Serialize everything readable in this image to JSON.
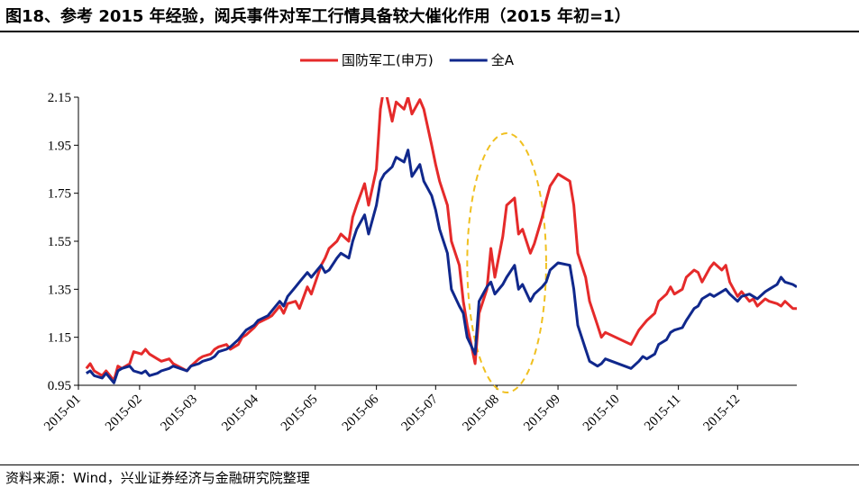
{
  "header": {
    "title": "图18、参考 2015 年经验，阅兵事件对军工行情具备较大催化作用（2015 年初=1）"
  },
  "footer": {
    "source": "资料来源：Wind，兴业证券经济与金融研究院整理"
  },
  "colors": {
    "series_red": "#e52a2a",
    "series_blue": "#10288c",
    "highlight": "#f0c020",
    "axis": "#000000"
  },
  "chart_data": {
    "type": "line",
    "title": "",
    "xlabel": "",
    "ylabel": "",
    "ylim": [
      0.95,
      2.15
    ],
    "yticks": [
      "2.15",
      "1.95",
      "1.75",
      "1.55",
      "1.35",
      "1.15",
      "0.95"
    ],
    "xticks": [
      "2015-01",
      "2015-02",
      "2015-03",
      "2015-04",
      "2015-05",
      "2015-06",
      "2015-07",
      "2015-08",
      "2015-09",
      "2015-10",
      "2015-11",
      "2015-12"
    ],
    "legend": {
      "position": "top-center"
    },
    "annotations": [
      {
        "type": "ellipse",
        "color": "#f0c020",
        "style": "dashed",
        "x_range": [
          "2015-07-17",
          "2015-08-26"
        ],
        "y_range": [
          0.92,
          2.0
        ]
      }
    ],
    "series": [
      {
        "name": "国防军工(申万)",
        "color": "#e52a2a",
        "points": [
          [
            "2015-01-05",
            1.02
          ],
          [
            "2015-01-07",
            1.04
          ],
          [
            "2015-01-09",
            1.01
          ],
          [
            "2015-01-13",
            0.99
          ],
          [
            "2015-01-15",
            1.01
          ],
          [
            "2015-01-19",
            0.97
          ],
          [
            "2015-01-21",
            1.03
          ],
          [
            "2015-01-23",
            1.02
          ],
          [
            "2015-01-27",
            1.04
          ],
          [
            "2015-01-29",
            1.09
          ],
          [
            "2015-02-02",
            1.08
          ],
          [
            "2015-02-04",
            1.1
          ],
          [
            "2015-02-06",
            1.08
          ],
          [
            "2015-02-10",
            1.06
          ],
          [
            "2015-02-12",
            1.05
          ],
          [
            "2015-02-16",
            1.06
          ],
          [
            "2015-02-18",
            1.04
          ],
          [
            "2015-02-25",
            1.01
          ],
          [
            "2015-02-27",
            1.03
          ],
          [
            "2015-03-03",
            1.06
          ],
          [
            "2015-03-05",
            1.07
          ],
          [
            "2015-03-09",
            1.08
          ],
          [
            "2015-03-11",
            1.1
          ],
          [
            "2015-03-13",
            1.11
          ],
          [
            "2015-03-17",
            1.12
          ],
          [
            "2015-03-19",
            1.1
          ],
          [
            "2015-03-23",
            1.12
          ],
          [
            "2015-03-25",
            1.15
          ],
          [
            "2015-03-27",
            1.16
          ],
          [
            "2015-03-31",
            1.19
          ],
          [
            "2015-04-02",
            1.21
          ],
          [
            "2015-04-07",
            1.23
          ],
          [
            "2015-04-09",
            1.24
          ],
          [
            "2015-04-13",
            1.28
          ],
          [
            "2015-04-15",
            1.25
          ],
          [
            "2015-04-17",
            1.29
          ],
          [
            "2015-04-21",
            1.3
          ],
          [
            "2015-04-23",
            1.27
          ],
          [
            "2015-04-27",
            1.36
          ],
          [
            "2015-04-29",
            1.33
          ],
          [
            "2015-05-04",
            1.45
          ],
          [
            "2015-05-06",
            1.48
          ],
          [
            "2015-05-08",
            1.52
          ],
          [
            "2015-05-12",
            1.55
          ],
          [
            "2015-05-14",
            1.58
          ],
          [
            "2015-05-18",
            1.55
          ],
          [
            "2015-05-20",
            1.65
          ],
          [
            "2015-05-22",
            1.7
          ],
          [
            "2015-05-26",
            1.79
          ],
          [
            "2015-05-28",
            1.7
          ],
          [
            "2015-06-01",
            1.85
          ],
          [
            "2015-06-03",
            2.1
          ],
          [
            "2015-06-05",
            2.2
          ],
          [
            "2015-06-09",
            2.05
          ],
          [
            "2015-06-11",
            2.13
          ],
          [
            "2015-06-15",
            2.1
          ],
          [
            "2015-06-17",
            2.15
          ],
          [
            "2015-06-19",
            2.08
          ],
          [
            "2015-06-23",
            2.14
          ],
          [
            "2015-06-25",
            2.1
          ],
          [
            "2015-06-29",
            1.95
          ],
          [
            "2015-07-01",
            1.87
          ],
          [
            "2015-07-03",
            1.8
          ],
          [
            "2015-07-07",
            1.7
          ],
          [
            "2015-07-09",
            1.55
          ],
          [
            "2015-07-13",
            1.45
          ],
          [
            "2015-07-15",
            1.3
          ],
          [
            "2015-07-17",
            1.2
          ],
          [
            "2015-07-21",
            1.04
          ],
          [
            "2015-07-23",
            1.25
          ],
          [
            "2015-07-27",
            1.35
          ],
          [
            "2015-07-29",
            1.52
          ],
          [
            "2015-07-31",
            1.4
          ],
          [
            "2015-08-04",
            1.57
          ],
          [
            "2015-08-06",
            1.7
          ],
          [
            "2015-08-10",
            1.73
          ],
          [
            "2015-08-12",
            1.58
          ],
          [
            "2015-08-14",
            1.6
          ],
          [
            "2015-08-18",
            1.5
          ],
          [
            "2015-08-20",
            1.54
          ],
          [
            "2015-08-24",
            1.65
          ],
          [
            "2015-08-26",
            1.72
          ],
          [
            "2015-08-28",
            1.78
          ],
          [
            "2015-09-01",
            1.83
          ],
          [
            "2015-09-07",
            1.8
          ],
          [
            "2015-09-09",
            1.7
          ],
          [
            "2015-09-11",
            1.5
          ],
          [
            "2015-09-15",
            1.4
          ],
          [
            "2015-09-17",
            1.3
          ],
          [
            "2015-09-21",
            1.2
          ],
          [
            "2015-09-23",
            1.15
          ],
          [
            "2015-09-25",
            1.17
          ],
          [
            "2015-10-08",
            1.12
          ],
          [
            "2015-10-12",
            1.18
          ],
          [
            "2015-10-14",
            1.2
          ],
          [
            "2015-10-16",
            1.22
          ],
          [
            "2015-10-20",
            1.25
          ],
          [
            "2015-10-22",
            1.3
          ],
          [
            "2015-10-26",
            1.33
          ],
          [
            "2015-10-28",
            1.36
          ],
          [
            "2015-10-30",
            1.33
          ],
          [
            "2015-11-03",
            1.35
          ],
          [
            "2015-11-05",
            1.4
          ],
          [
            "2015-11-09",
            1.43
          ],
          [
            "2015-11-11",
            1.42
          ],
          [
            "2015-11-13",
            1.38
          ],
          [
            "2015-11-17",
            1.44
          ],
          [
            "2015-11-19",
            1.46
          ],
          [
            "2015-11-23",
            1.43
          ],
          [
            "2015-11-25",
            1.45
          ],
          [
            "2015-11-27",
            1.38
          ],
          [
            "2015-12-01",
            1.32
          ],
          [
            "2015-12-03",
            1.34
          ],
          [
            "2015-12-07",
            1.3
          ],
          [
            "2015-12-09",
            1.31
          ],
          [
            "2015-12-11",
            1.28
          ],
          [
            "2015-12-15",
            1.31
          ],
          [
            "2015-12-17",
            1.3
          ],
          [
            "2015-12-21",
            1.29
          ],
          [
            "2015-12-23",
            1.28
          ],
          [
            "2015-12-25",
            1.3
          ],
          [
            "2015-12-29",
            1.27
          ],
          [
            "2015-12-31",
            1.27
          ]
        ]
      },
      {
        "name": "全A",
        "color": "#10288c",
        "points": [
          [
            "2015-01-05",
            1.0
          ],
          [
            "2015-01-07",
            1.01
          ],
          [
            "2015-01-09",
            0.99
          ],
          [
            "2015-01-13",
            0.98
          ],
          [
            "2015-01-15",
            1.0
          ],
          [
            "2015-01-19",
            0.96
          ],
          [
            "2015-01-21",
            1.01
          ],
          [
            "2015-01-23",
            1.02
          ],
          [
            "2015-01-27",
            1.03
          ],
          [
            "2015-01-29",
            1.01
          ],
          [
            "2015-02-02",
            1.0
          ],
          [
            "2015-02-04",
            1.01
          ],
          [
            "2015-02-06",
            0.99
          ],
          [
            "2015-02-10",
            1.0
          ],
          [
            "2015-02-12",
            1.01
          ],
          [
            "2015-02-16",
            1.02
          ],
          [
            "2015-02-18",
            1.03
          ],
          [
            "2015-02-25",
            1.01
          ],
          [
            "2015-02-27",
            1.03
          ],
          [
            "2015-03-03",
            1.04
          ],
          [
            "2015-03-05",
            1.05
          ],
          [
            "2015-03-09",
            1.06
          ],
          [
            "2015-03-11",
            1.07
          ],
          [
            "2015-03-13",
            1.09
          ],
          [
            "2015-03-17",
            1.1
          ],
          [
            "2015-03-19",
            1.11
          ],
          [
            "2015-03-23",
            1.14
          ],
          [
            "2015-03-25",
            1.16
          ],
          [
            "2015-03-27",
            1.18
          ],
          [
            "2015-03-31",
            1.2
          ],
          [
            "2015-04-02",
            1.22
          ],
          [
            "2015-04-07",
            1.24
          ],
          [
            "2015-04-09",
            1.26
          ],
          [
            "2015-04-13",
            1.3
          ],
          [
            "2015-04-15",
            1.28
          ],
          [
            "2015-04-17",
            1.32
          ],
          [
            "2015-04-21",
            1.36
          ],
          [
            "2015-04-23",
            1.38
          ],
          [
            "2015-04-27",
            1.42
          ],
          [
            "2015-04-29",
            1.4
          ],
          [
            "2015-05-04",
            1.45
          ],
          [
            "2015-05-06",
            1.42
          ],
          [
            "2015-05-08",
            1.43
          ],
          [
            "2015-05-12",
            1.48
          ],
          [
            "2015-05-14",
            1.5
          ],
          [
            "2015-05-18",
            1.48
          ],
          [
            "2015-05-20",
            1.55
          ],
          [
            "2015-05-22",
            1.6
          ],
          [
            "2015-05-26",
            1.66
          ],
          [
            "2015-05-28",
            1.58
          ],
          [
            "2015-06-01",
            1.7
          ],
          [
            "2015-06-03",
            1.8
          ],
          [
            "2015-06-05",
            1.83
          ],
          [
            "2015-06-09",
            1.86
          ],
          [
            "2015-06-11",
            1.9
          ],
          [
            "2015-06-15",
            1.88
          ],
          [
            "2015-06-17",
            1.93
          ],
          [
            "2015-06-19",
            1.82
          ],
          [
            "2015-06-23",
            1.87
          ],
          [
            "2015-06-25",
            1.8
          ],
          [
            "2015-06-29",
            1.74
          ],
          [
            "2015-07-01",
            1.68
          ],
          [
            "2015-07-03",
            1.6
          ],
          [
            "2015-07-07",
            1.5
          ],
          [
            "2015-07-09",
            1.35
          ],
          [
            "2015-07-13",
            1.28
          ],
          [
            "2015-07-15",
            1.25
          ],
          [
            "2015-07-17",
            1.15
          ],
          [
            "2015-07-21",
            1.08
          ],
          [
            "2015-07-23",
            1.3
          ],
          [
            "2015-07-27",
            1.36
          ],
          [
            "2015-07-29",
            1.38
          ],
          [
            "2015-07-31",
            1.33
          ],
          [
            "2015-08-04",
            1.37
          ],
          [
            "2015-08-06",
            1.4
          ],
          [
            "2015-08-10",
            1.45
          ],
          [
            "2015-08-12",
            1.35
          ],
          [
            "2015-08-14",
            1.37
          ],
          [
            "2015-08-18",
            1.3
          ],
          [
            "2015-08-20",
            1.33
          ],
          [
            "2015-08-24",
            1.36
          ],
          [
            "2015-08-26",
            1.38
          ],
          [
            "2015-08-28",
            1.43
          ],
          [
            "2015-09-01",
            1.46
          ],
          [
            "2015-09-07",
            1.45
          ],
          [
            "2015-09-09",
            1.35
          ],
          [
            "2015-09-11",
            1.2
          ],
          [
            "2015-09-15",
            1.1
          ],
          [
            "2015-09-17",
            1.05
          ],
          [
            "2015-09-21",
            1.03
          ],
          [
            "2015-09-23",
            1.04
          ],
          [
            "2015-09-25",
            1.06
          ],
          [
            "2015-10-08",
            1.02
          ],
          [
            "2015-10-12",
            1.05
          ],
          [
            "2015-10-14",
            1.07
          ],
          [
            "2015-10-16",
            1.06
          ],
          [
            "2015-10-20",
            1.08
          ],
          [
            "2015-10-22",
            1.12
          ],
          [
            "2015-10-26",
            1.14
          ],
          [
            "2015-10-28",
            1.17
          ],
          [
            "2015-10-30",
            1.18
          ],
          [
            "2015-11-03",
            1.19
          ],
          [
            "2015-11-05",
            1.22
          ],
          [
            "2015-11-09",
            1.27
          ],
          [
            "2015-11-11",
            1.28
          ],
          [
            "2015-11-13",
            1.31
          ],
          [
            "2015-11-17",
            1.33
          ],
          [
            "2015-11-19",
            1.32
          ],
          [
            "2015-11-23",
            1.34
          ],
          [
            "2015-11-25",
            1.35
          ],
          [
            "2015-11-27",
            1.33
          ],
          [
            "2015-12-01",
            1.3
          ],
          [
            "2015-12-03",
            1.32
          ],
          [
            "2015-12-07",
            1.33
          ],
          [
            "2015-12-09",
            1.32
          ],
          [
            "2015-12-11",
            1.31
          ],
          [
            "2015-12-15",
            1.34
          ],
          [
            "2015-12-17",
            1.35
          ],
          [
            "2015-12-21",
            1.37
          ],
          [
            "2015-12-23",
            1.4
          ],
          [
            "2015-12-25",
            1.38
          ],
          [
            "2015-12-29",
            1.37
          ],
          [
            "2015-12-31",
            1.36
          ]
        ]
      }
    ]
  }
}
